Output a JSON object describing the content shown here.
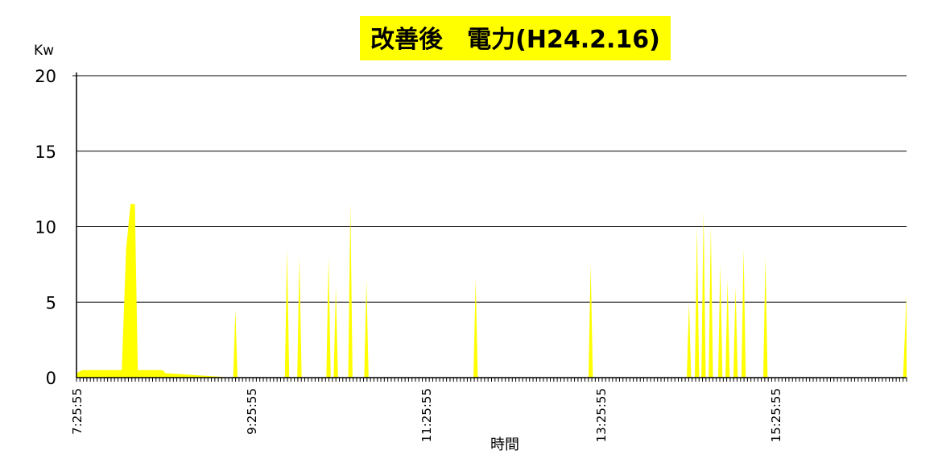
{
  "chart_data": {
    "type": "area",
    "title": "改善後　電力(H24.2.16)",
    "ylabel": "Kw",
    "xlabel": "時間",
    "ylim": [
      0,
      20
    ],
    "yticks": [
      0,
      5,
      10,
      15,
      20
    ],
    "xlim": [
      "7:25:55",
      "16:55:55"
    ],
    "xticks": [
      "7:25:55",
      "9:25:55",
      "11:25:55",
      "13:25:55",
      "15:25:55"
    ],
    "grid": true,
    "color": "#ffff00",
    "series": [
      {
        "x": [
          "7:25:55",
          "7:30:00",
          "7:55:00",
          "7:57:00",
          "8:00:00",
          "8:03:00",
          "8:06:00",
          "8:08:00",
          "8:10:00",
          "8:25:00",
          "8:27:00",
          "9:13:30",
          "9:15:00",
          "9:16:30",
          "9:49:00",
          "9:50:30",
          "9:52:00",
          "9:57:30",
          "9:59:00",
          "10:00:30",
          "10:17:30",
          "10:19:00",
          "10:20:30",
          "10:22:30",
          "10:24:00",
          "10:25:30",
          "10:32:30",
          "10:34:00",
          "10:35:30",
          "10:43:30",
          "10:45:00",
          "10:46:30",
          "11:58:30",
          "12:00:00",
          "12:01:30",
          "13:17:30",
          "13:19:00",
          "13:20:30",
          "14:25:00",
          "14:26:30",
          "14:28:00",
          "14:30:30",
          "14:32:00",
          "14:33:30",
          "14:35:00",
          "14:36:30",
          "14:38:00",
          "14:40:00",
          "14:41:30",
          "14:43:00",
          "14:46:30",
          "14:48:00",
          "14:49:30",
          "14:51:30",
          "14:53:00",
          "14:54:30",
          "14:57:00",
          "14:58:30",
          "15:00:00",
          "15:02:30",
          "15:04:00",
          "15:05:30",
          "15:17:30",
          "15:19:00",
          "15:20:30",
          "16:53:30",
          "16:55:55"
        ],
        "values": [
          0.3,
          0.5,
          0.5,
          0.5,
          8.5,
          11.5,
          11.5,
          0.5,
          0.5,
          0.5,
          0.3,
          0,
          4.5,
          0,
          0,
          8.5,
          0,
          0,
          8,
          0,
          0,
          8,
          0,
          0,
          6,
          0,
          0,
          11.5,
          0,
          0,
          6.5,
          0,
          0,
          6.5,
          0,
          0,
          7.5,
          0,
          0,
          5,
          0,
          0,
          10,
          0,
          0,
          11,
          0,
          0,
          10,
          0,
          0,
          7.5,
          0,
          0,
          6.5,
          0,
          0,
          6,
          0,
          0,
          8.5,
          0,
          0,
          8,
          0,
          0,
          5.5
        ]
      }
    ]
  }
}
